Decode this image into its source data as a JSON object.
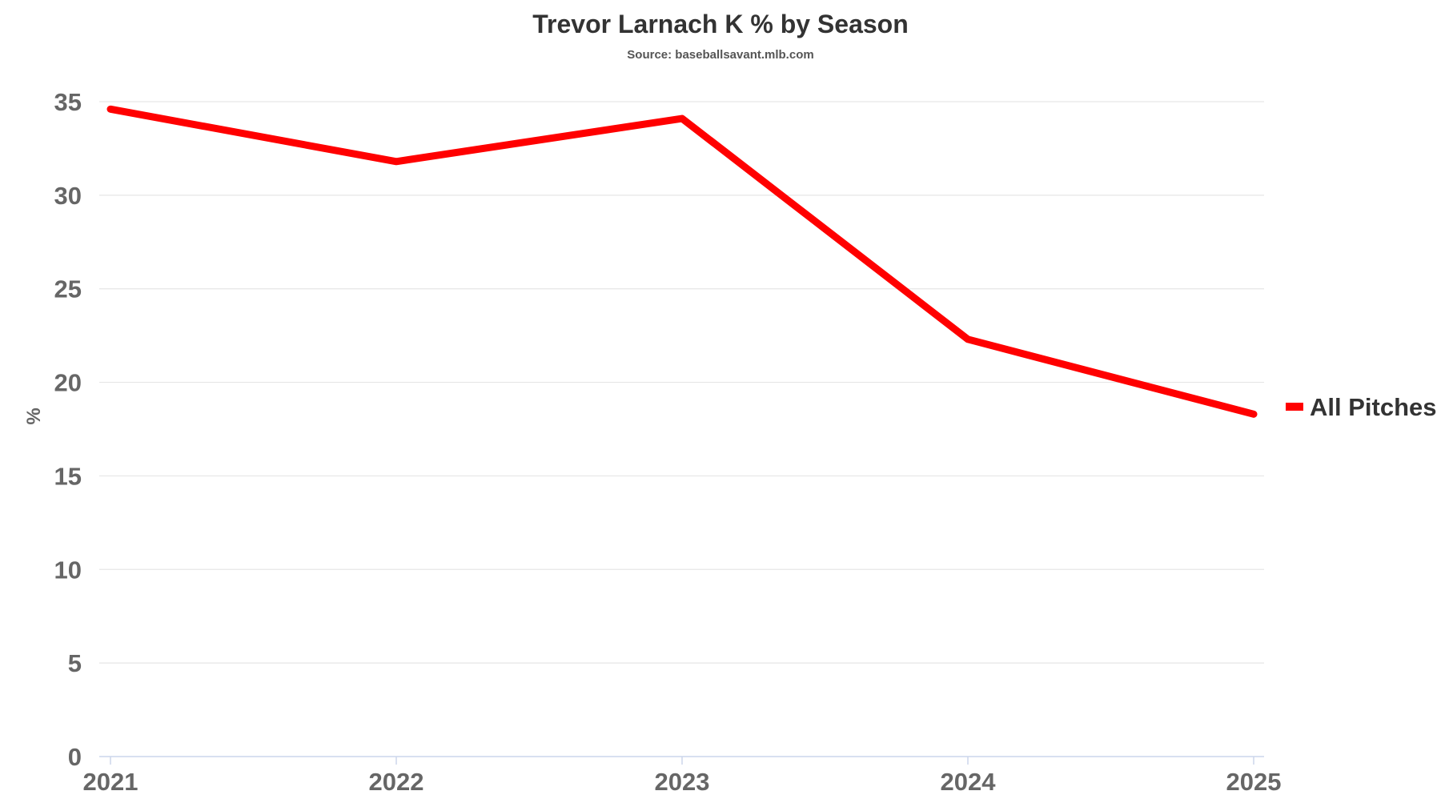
{
  "chart_data": {
    "type": "line",
    "title": "Trevor Larnach K % by Season",
    "subtitle": "Source: baseballsavant.mlb.com",
    "xlabel": "",
    "ylabel": "%",
    "categories": [
      "2021",
      "2022",
      "2023",
      "2024",
      "2025"
    ],
    "series": [
      {
        "name": "All Pitches",
        "color": "#ff0000",
        "values": [
          34.6,
          31.8,
          34.1,
          22.3,
          18.3
        ]
      }
    ],
    "ylim": [
      0,
      35
    ],
    "yticks": [
      0,
      5,
      10,
      15,
      20,
      25,
      30,
      35
    ],
    "grid": true,
    "legend_position": "right"
  }
}
